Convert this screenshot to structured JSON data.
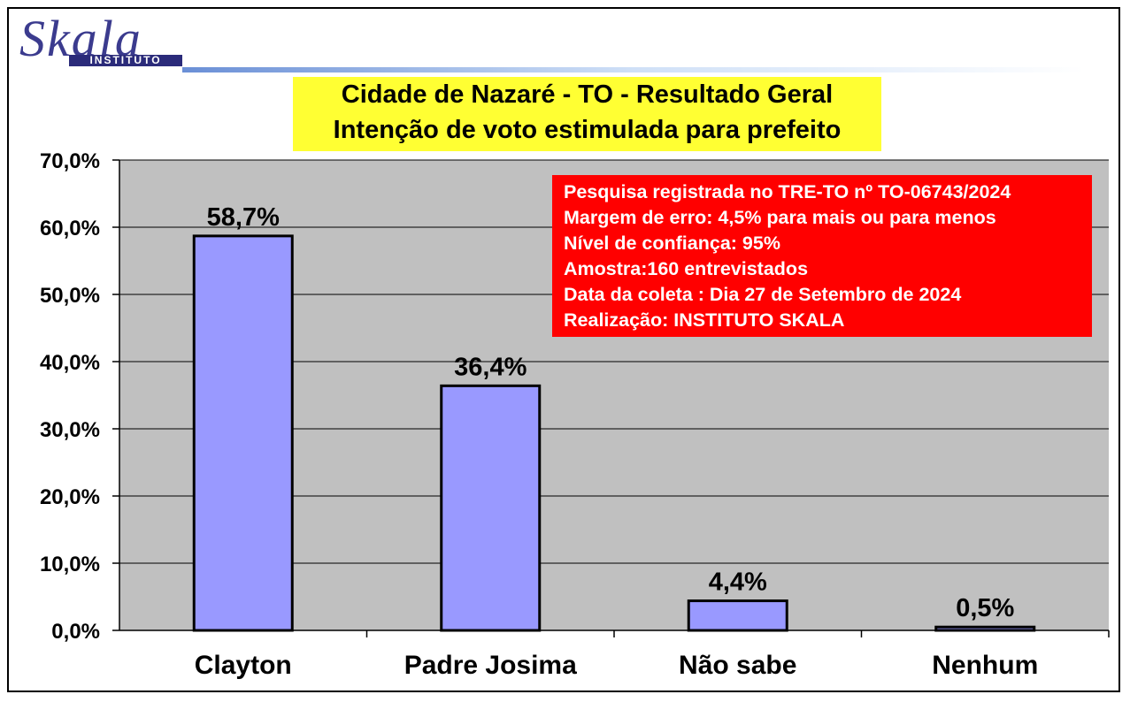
{
  "logo": {
    "word": "Skala",
    "sub": "INSTITUTO"
  },
  "chart_data": {
    "type": "bar",
    "title": "Cidade de Nazaré - TO - Resultado Geral",
    "subtitle": "Intenção de voto estimulada para prefeito",
    "categories": [
      "Clayton",
      "Padre Josima",
      "Não sabe",
      "Nenhum"
    ],
    "values": [
      58.7,
      36.4,
      4.4,
      0.5
    ],
    "value_labels": [
      "58,7%",
      "36,4%",
      "4,4%",
      "0,5%"
    ],
    "ylim": [
      0,
      70
    ],
    "yticks": [
      0,
      10,
      20,
      30,
      40,
      50,
      60,
      70
    ],
    "ytick_labels": [
      "0,0%",
      "10,0%",
      "20,0%",
      "30,0%",
      "40,0%",
      "50,0%",
      "60,0%",
      "70,0%"
    ],
    "grid": true,
    "bar_color": "#9999ff",
    "plot_background": "#c0c0c0"
  },
  "info_box": {
    "background": "#ff0000",
    "lines": [
      "Pesquisa registrada no TRE-TO nº TO-06743/2024",
      "Margem de erro: 4,5% para mais ou para menos",
      "Nível de confiança: 95%",
      "Amostra:160 entrevistados",
      "Data da coleta : Dia 27 de Setembro de 2024",
      "Realização: INSTITUTO SKALA"
    ]
  }
}
